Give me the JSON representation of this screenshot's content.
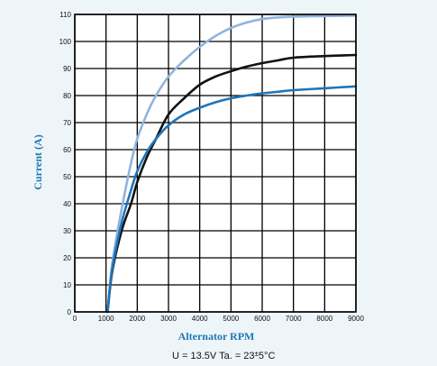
{
  "chart_data": {
    "type": "line",
    "xlabel": "Alternator RPM",
    "ylabel": "Current (A)",
    "xlim": [
      0,
      9000
    ],
    "ylim": [
      0,
      110
    ],
    "x_ticks": [
      "0",
      "1000",
      "2000",
      "3000",
      "4000",
      "5000",
      "6000",
      "7000",
      "8000",
      "9000"
    ],
    "y_ticks": [
      "0",
      "10",
      "20",
      "30",
      "40",
      "50",
      "60",
      "70",
      "80",
      "90",
      "100",
      "110"
    ],
    "grid": true,
    "footnote": {
      "text": "U = 13.5V   Ta. = 23",
      "tolerance": "±",
      "unit": "5°C"
    },
    "series": [
      {
        "color": "#8fb4de",
        "x": [
          1050,
          1200,
          1500,
          1800,
          2000,
          2300,
          2600,
          3000,
          3500,
          4000,
          4500,
          5000,
          5500,
          6000,
          6500,
          7000,
          8000,
          9000
        ],
        "y": [
          0,
          18,
          38,
          55,
          64,
          73,
          80,
          87,
          93,
          98,
          102,
          105,
          107,
          108.3,
          108.9,
          109.2,
          109.4,
          109.5
        ]
      },
      {
        "color": "#111111",
        "x": [
          1050,
          1200,
          1500,
          1800,
          2000,
          2300,
          2600,
          3000,
          3500,
          4000,
          4500,
          5000,
          5500,
          6000,
          6500,
          7000,
          8000,
          9000
        ],
        "y": [
          0,
          15,
          30,
          40,
          48,
          57,
          64,
          73,
          79,
          84,
          87,
          89,
          90.7,
          92,
          93,
          94,
          94.6,
          95
        ]
      },
      {
        "color": "#1f74b8",
        "x": [
          1050,
          1200,
          1500,
          1800,
          2000,
          2300,
          2600,
          3000,
          3500,
          4000,
          4500,
          5000,
          5500,
          6000,
          6500,
          7000,
          8000,
          9000
        ],
        "y": [
          0,
          16,
          33,
          45,
          52,
          59,
          64,
          69,
          73,
          75.5,
          77.5,
          79,
          80,
          80.8,
          81.4,
          82,
          82.7,
          83.4
        ]
      }
    ]
  }
}
